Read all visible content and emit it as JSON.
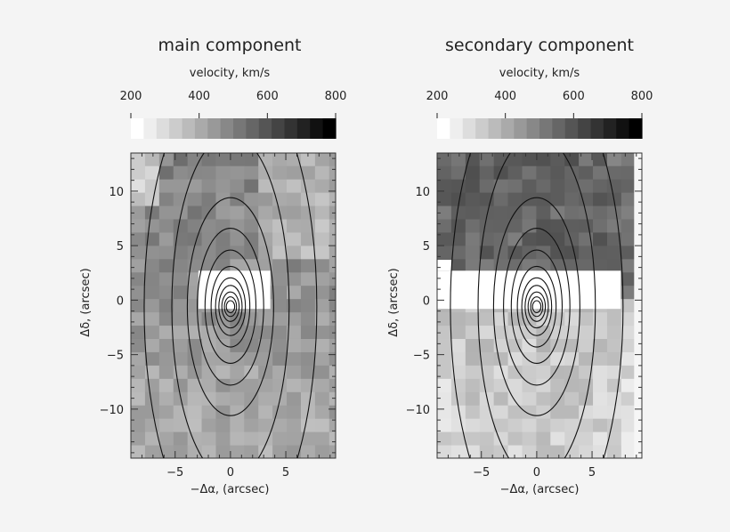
{
  "chart_data": [
    {
      "type": "heatmap",
      "title": "main component",
      "colorbar_label": "velocity, km/s",
      "colorbar_ticks": [
        "200",
        "400",
        "600",
        "800"
      ],
      "colorbar_range": [
        200,
        800
      ],
      "xlabel": "−Δα, (arcsec)",
      "ylabel": "Δδ, (arcsec)",
      "xlim": [
        -9,
        9.5
      ],
      "ylim": [
        -14.5,
        13.5
      ],
      "xticks": [
        "−5",
        "0",
        "5"
      ],
      "yticks": [
        "10",
        "5",
        "0",
        "−5",
        "−10"
      ],
      "contours": "isophotes centered at (0, 0)"
    },
    {
      "type": "heatmap",
      "title": "secondary component",
      "colorbar_label": "velocity, km/s",
      "colorbar_ticks": [
        "200",
        "400",
        "600",
        "800"
      ],
      "colorbar_range": [
        200,
        800
      ],
      "xlabel": "−Δα, (arcsec)",
      "ylabel": "Δδ, (arcsec)",
      "xlim": [
        -9,
        9.5
      ],
      "ylim": [
        -14.5,
        13.5
      ],
      "xticks": [
        "−5",
        "0",
        "5"
      ],
      "yticks": [
        "10",
        "5",
        "0",
        "−5",
        "−10"
      ],
      "contours": "isophotes centered at (0, 0)"
    }
  ]
}
